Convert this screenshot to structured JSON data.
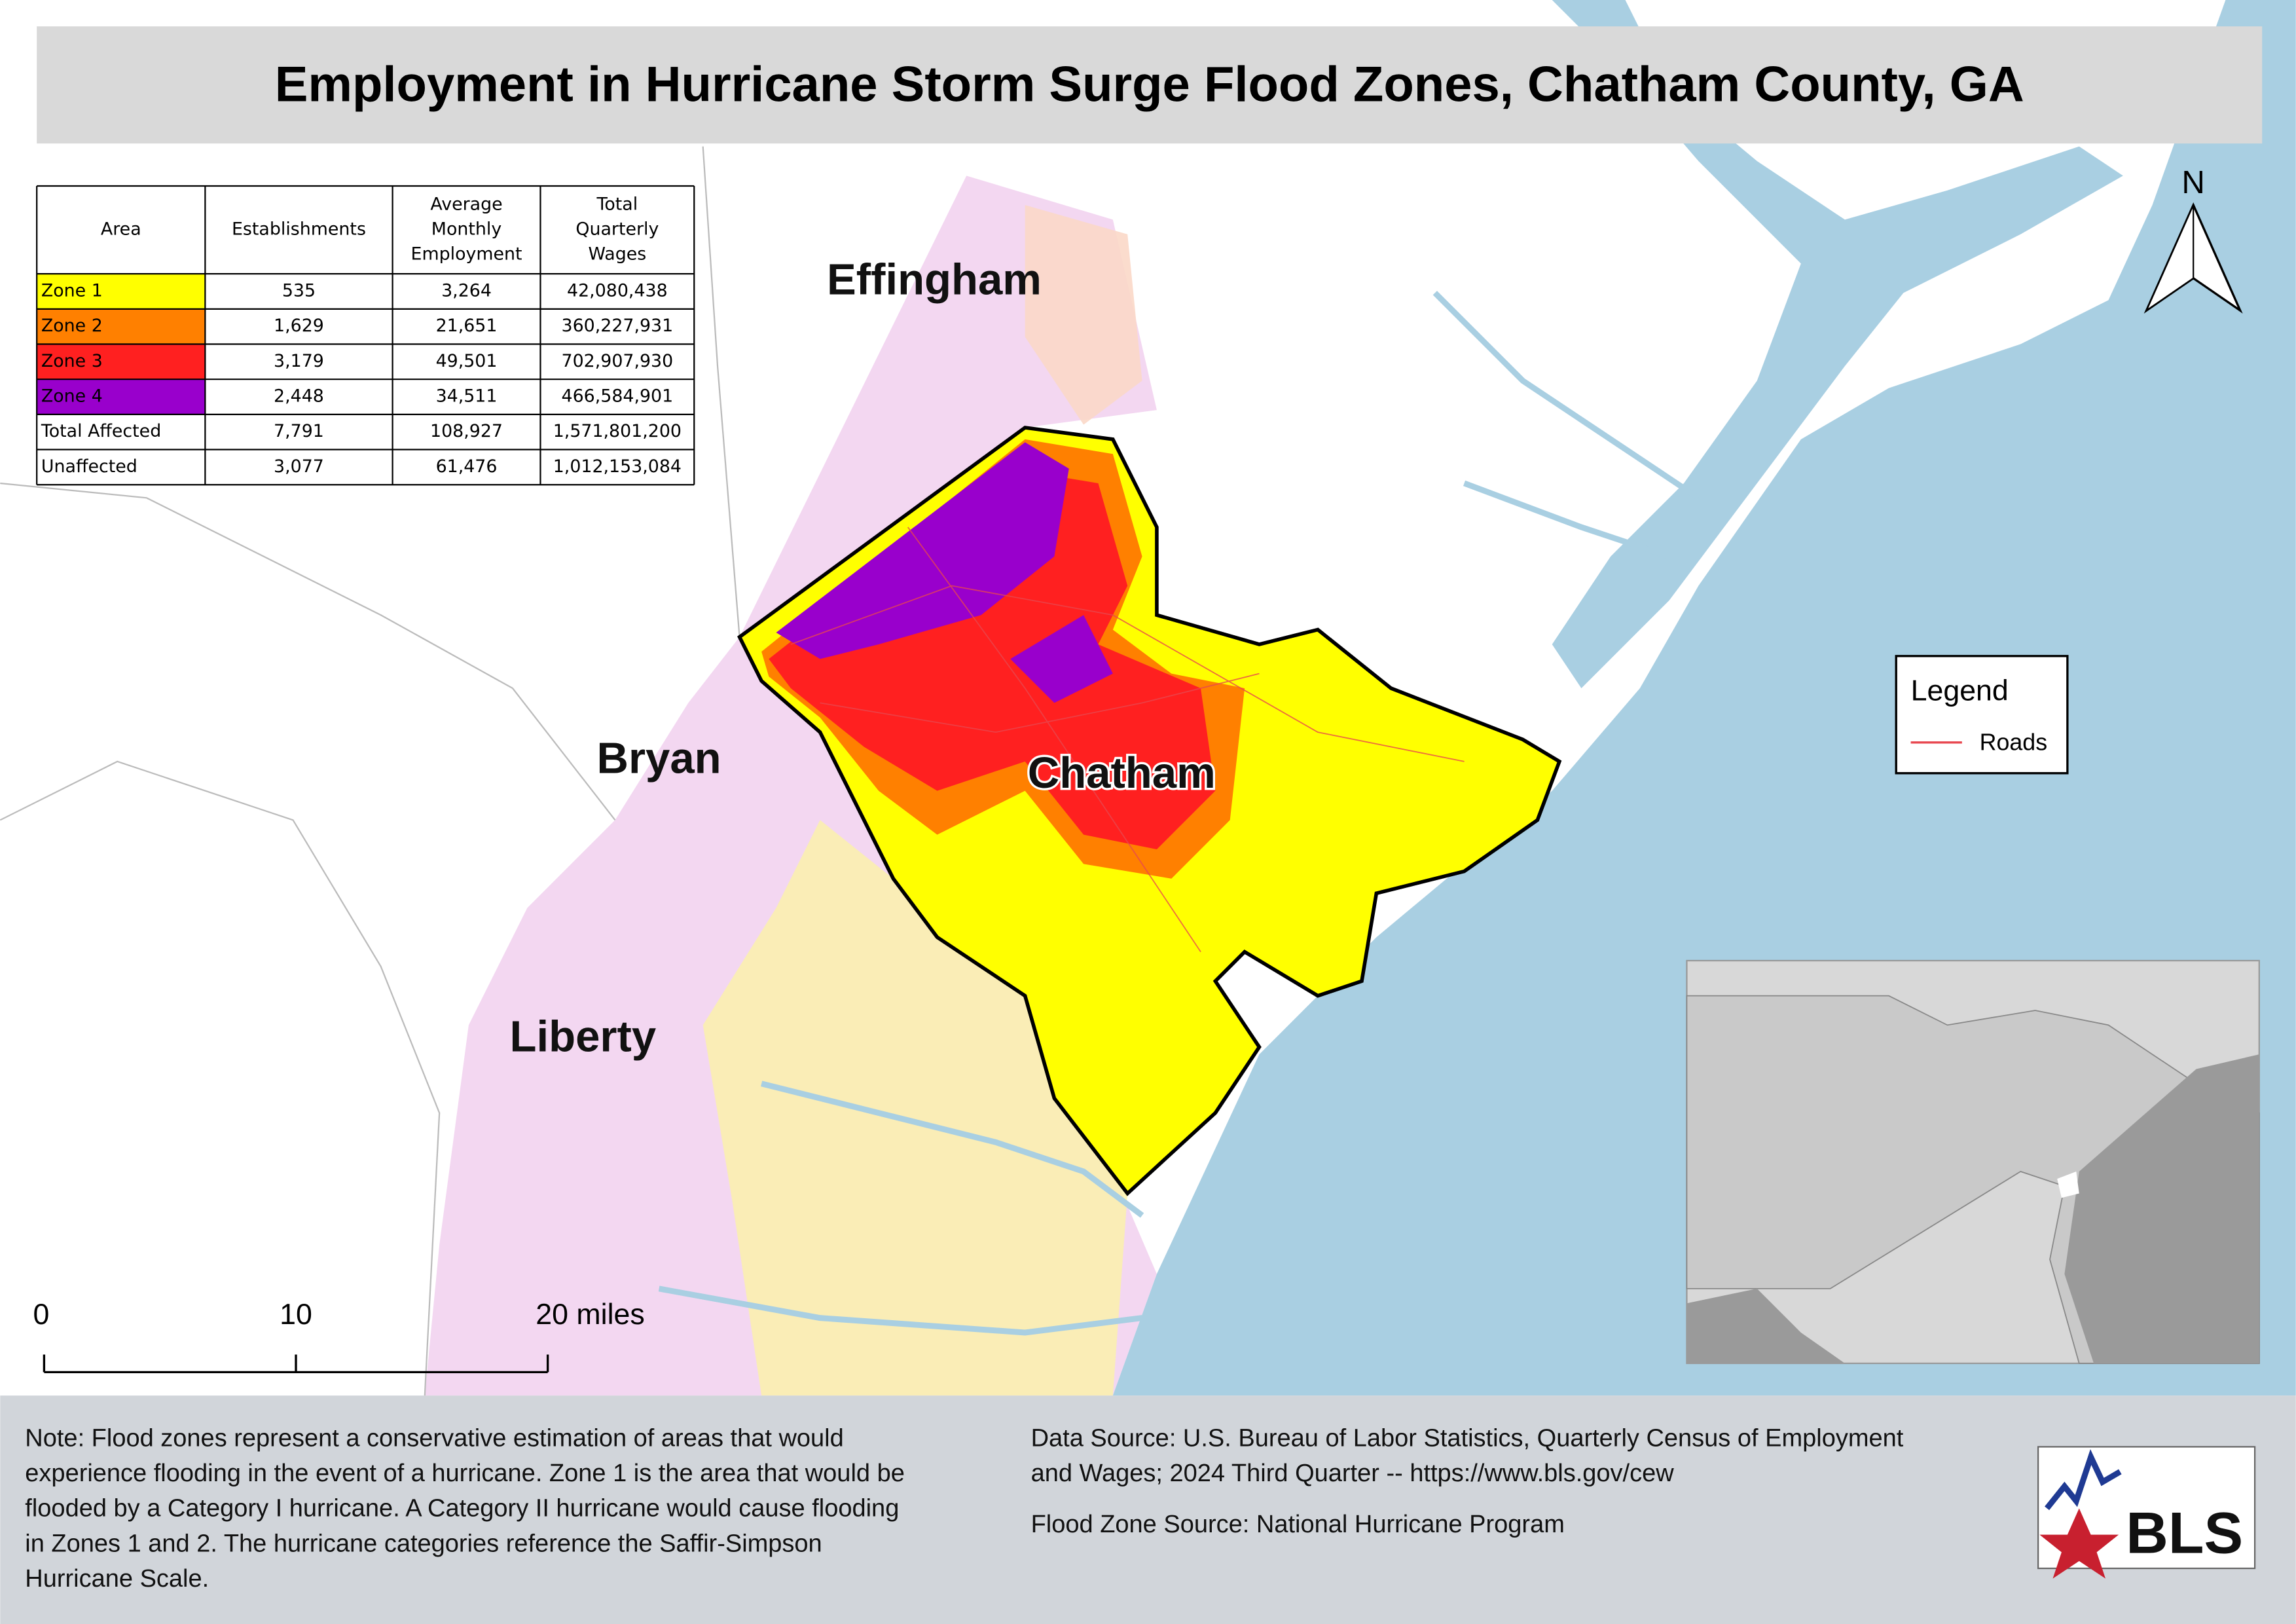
{
  "title": "Employment in Hurricane Storm Surge Flood Zones, Chatham County, GA",
  "table": {
    "header": [
      [
        "Area"
      ],
      [
        "Establishments"
      ],
      [
        "Average",
        "Monthly",
        "Employment"
      ],
      [
        "Total",
        "Quarterly",
        "Wages"
      ]
    ],
    "rows": [
      {
        "cells": [
          "Zone 1",
          "535",
          "3,264",
          "42,080,438"
        ],
        "color": "#ffff00"
      },
      {
        "cells": [
          "Zone 2",
          "1,629",
          "21,651",
          "360,227,931"
        ],
        "color": "#ff8000"
      },
      {
        "cells": [
          "Zone 3",
          "3,179",
          "49,501",
          "702,907,930"
        ],
        "color": "#ff2020"
      },
      {
        "cells": [
          "Zone 4",
          "2,448",
          "34,511",
          "466,584,901"
        ],
        "color": "#9900cc"
      },
      {
        "cells": [
          "Total Affected",
          "7,791",
          "108,927",
          "1,571,801,200"
        ]
      },
      {
        "cells": [
          "Unaffected",
          "3,077",
          "61,476",
          "1,012,153,084"
        ]
      }
    ]
  },
  "counties": [
    "Effingham",
    "Bryan",
    "Chatham",
    "Liberty"
  ],
  "legend": {
    "title": "Legend",
    "items": [
      {
        "name": "Roads",
        "color": "#e8474f"
      }
    ]
  },
  "north_arrow": "N",
  "scale_bar": [
    "0",
    "10",
    "20 miles"
  ],
  "note": [
    "Note: Flood zones represent a conservative estimation of areas that would",
    "experience flooding in the event of a hurricane. Zone 1 is the area that would be",
    "flooded by a Category I hurricane. A Category II hurricane would cause flooding",
    "in Zones 1 and 2. The hurricane categories reference the Saffir-Simpson",
    "Hurricane Scale."
  ],
  "data_source": [
    "Data Source: U.S. Bureau of Labor Statistics, Quarterly Census of Employment",
    "and Wages; 2024 Third Quarter -- https://www.bls.gov/cew"
  ],
  "flood_source": "Flood Zone Source: National Hurricane Program",
  "logo": "BLS"
}
